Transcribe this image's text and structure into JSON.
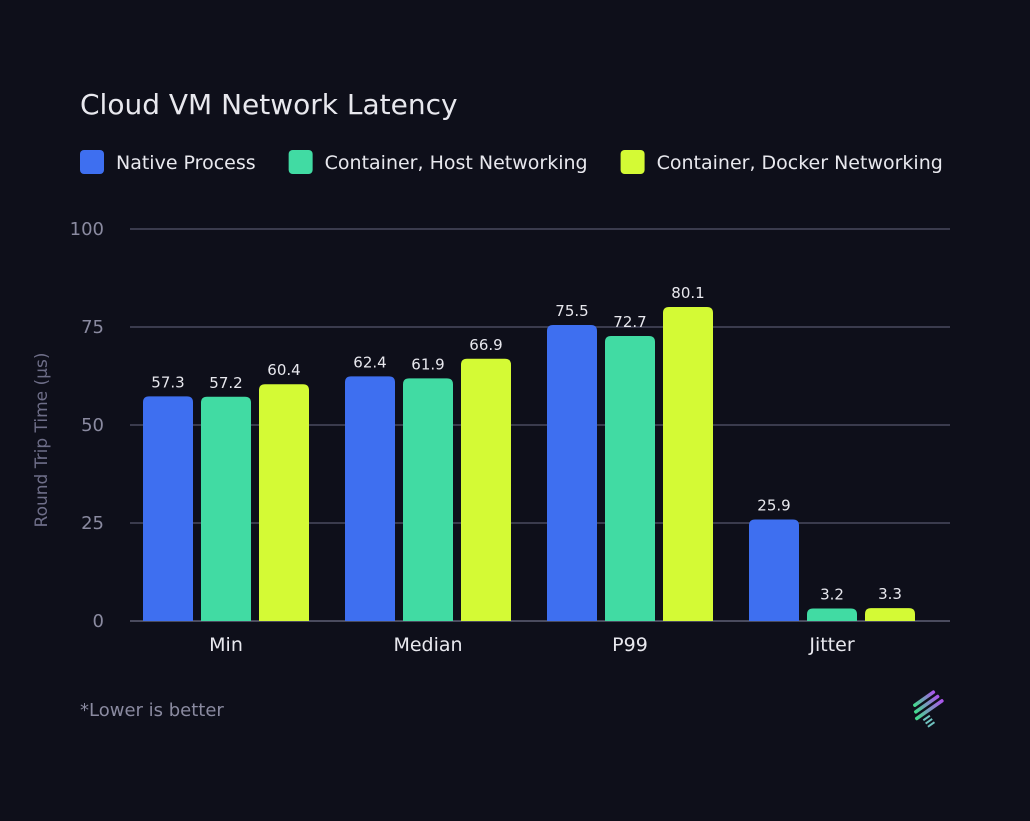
{
  "chart_data": {
    "type": "bar",
    "title": "Cloud VM Network Latency",
    "ylabel": "Round Trip Time (µs)",
    "xlabel": "",
    "ylim": [
      0,
      100
    ],
    "yticks": [
      "0",
      "25",
      "50",
      "75",
      "100"
    ],
    "grid": true,
    "legend_position": "top-left",
    "categories": [
      "Min",
      "Median",
      "P99",
      "Jitter"
    ],
    "series": [
      {
        "name": "Native Process",
        "color": "#3e6ff0",
        "values": [
          57.3,
          62.4,
          75.5,
          25.9
        ]
      },
      {
        "name": "Container, Host Networking",
        "color": "#41dba3",
        "values": [
          57.2,
          61.9,
          72.7,
          3.2
        ]
      },
      {
        "name": "Container, Docker Networking",
        "color": "#d4fa35",
        "values": [
          60.4,
          66.9,
          80.1,
          3.3
        ]
      }
    ],
    "footnote": "*Lower is better"
  },
  "colors": {
    "background": "#0e0f1a",
    "grid": "#3a3b4d",
    "text": "#e8e8ee",
    "muted": "#8a8aa0"
  },
  "logo": "stripes-logo-icon"
}
